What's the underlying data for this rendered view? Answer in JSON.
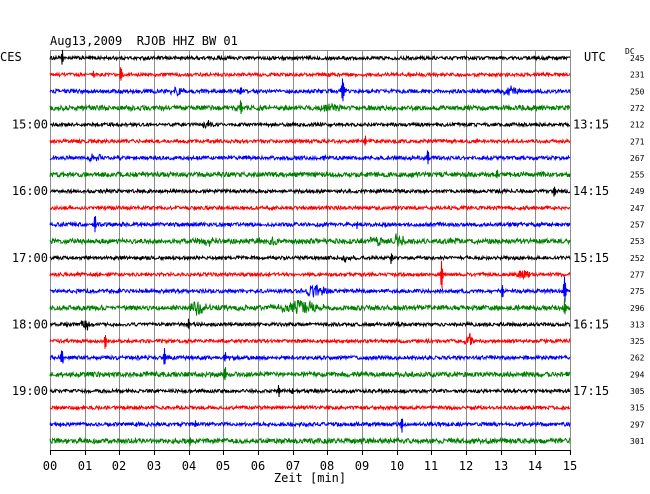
{
  "chart_data": {
    "type": "line",
    "title": "Aug13,2009  RJOB HHZ BW 01",
    "xlabel": "Zeit [min]",
    "xlim": [
      0,
      15
    ],
    "x_tick_labels": [
      "00",
      "01",
      "02",
      "03",
      "04",
      "05",
      "06",
      "07",
      "08",
      "09",
      "10",
      "11",
      "12",
      "13",
      "14",
      "15"
    ],
    "left_axis_label": "CES",
    "right_axis_label": "UTC",
    "dc_header": "DC",
    "grid": "vertical",
    "grid_color": "#8c8c8c",
    "rows": [
      {
        "color": "#000000",
        "dc": "245",
        "noise": 1.0,
        "events": [
          {
            "t": 0.35,
            "amp": 5,
            "dur": 0.03
          }
        ]
      },
      {
        "color": "#ff0000",
        "dc": "231",
        "noise": 1.0,
        "events": [
          {
            "t": 2.05,
            "amp": 6,
            "dur": 0.03
          },
          {
            "t": 1.25,
            "amp": 2,
            "dur": 0.03
          }
        ]
      },
      {
        "color": "#0000ff",
        "dc": "250",
        "noise": 1.1,
        "events": [
          {
            "t": 3.7,
            "amp": 3,
            "dur": 0.18
          },
          {
            "t": 5.5,
            "amp": 3,
            "dur": 0.03
          },
          {
            "t": 8.45,
            "amp": 7,
            "dur": 0.05
          },
          {
            "t": 13.3,
            "amp": 2.5,
            "dur": 0.2
          }
        ]
      },
      {
        "color": "#008000",
        "dc": "272",
        "noise": 1.4,
        "events": [
          {
            "t": 8.1,
            "amp": 3,
            "dur": 0.2
          },
          {
            "t": 5.5,
            "amp": 5,
            "dur": 0.03
          },
          {
            "t": 2.3,
            "amp": 2,
            "dur": 0.03
          }
        ]
      },
      {
        "color": "#000000",
        "dc": "212",
        "noise": 1.0,
        "ces": "15:00",
        "utc": "13:15",
        "events": [
          {
            "t": 4.55,
            "amp": 2,
            "dur": 0.2
          }
        ]
      },
      {
        "color": "#ff0000",
        "dc": "271",
        "noise": 1.0,
        "events": [
          {
            "t": 9.1,
            "amp": 3.5,
            "dur": 0.03
          }
        ]
      },
      {
        "color": "#0000ff",
        "dc": "267",
        "noise": 1.1,
        "events": [
          {
            "t": 1.3,
            "amp": 2,
            "dur": 0.2
          },
          {
            "t": 10.9,
            "amp": 4,
            "dur": 0.03
          },
          {
            "t": 7.9,
            "amp": 2,
            "dur": 0.03
          }
        ]
      },
      {
        "color": "#008000",
        "dc": "255",
        "noise": 1.4,
        "events": [
          {
            "t": 12.9,
            "amp": 2,
            "dur": 0.05
          }
        ]
      },
      {
        "color": "#000000",
        "dc": "249",
        "noise": 1.0,
        "ces": "16:00",
        "utc": "14:15",
        "events": [
          {
            "t": 14.55,
            "amp": 5,
            "dur": 0.03
          }
        ]
      },
      {
        "color": "#ff0000",
        "dc": "247",
        "noise": 1.0,
        "events": []
      },
      {
        "color": "#0000ff",
        "dc": "257",
        "noise": 1.1,
        "events": [
          {
            "t": 1.3,
            "amp": 5,
            "dur": 0.03
          },
          {
            "t": 8.85,
            "amp": 2,
            "dur": 0.03
          }
        ]
      },
      {
        "color": "#008000",
        "dc": "253",
        "noise": 1.4,
        "events": [
          {
            "t": 4.5,
            "amp": 3,
            "dur": 0.25
          },
          {
            "t": 9.4,
            "amp": 2.5,
            "dur": 0.2
          },
          {
            "t": 10.05,
            "amp": 5,
            "dur": 0.15
          },
          {
            "t": 6.3,
            "amp": 1.8,
            "dur": 0.3
          }
        ]
      },
      {
        "color": "#000000",
        "dc": "252",
        "noise": 1.0,
        "ces": "17:00",
        "utc": "15:15",
        "events": [
          {
            "t": 8.5,
            "amp": 2,
            "dur": 0.25
          },
          {
            "t": 9.85,
            "amp": 3.5,
            "dur": 0.03
          }
        ]
      },
      {
        "color": "#ff0000",
        "dc": "277",
        "noise": 1.0,
        "events": [
          {
            "t": 11.3,
            "amp": 9,
            "dur": 0.03
          },
          {
            "t": 13.65,
            "amp": 3,
            "dur": 0.15
          }
        ]
      },
      {
        "color": "#0000ff",
        "dc": "275",
        "noise": 1.1,
        "events": [
          {
            "t": 7.65,
            "amp": 4,
            "dur": 0.25
          },
          {
            "t": 13.05,
            "amp": 5,
            "dur": 0.03
          },
          {
            "t": 14.85,
            "amp": 8,
            "dur": 0.04
          },
          {
            "t": 2.0,
            "amp": 2,
            "dur": 0.03
          }
        ]
      },
      {
        "color": "#008000",
        "dc": "296",
        "noise": 1.4,
        "events": [
          {
            "t": 4.3,
            "amp": 4,
            "dur": 0.25
          },
          {
            "t": 7.2,
            "amp": 4,
            "dur": 0.6
          },
          {
            "t": 14.85,
            "amp": 6,
            "dur": 0.03
          }
        ]
      },
      {
        "color": "#000000",
        "dc": "313",
        "noise": 1.0,
        "ces": "18:00",
        "utc": "16:15",
        "events": [
          {
            "t": 1.05,
            "amp": 4,
            "dur": 0.15
          },
          {
            "t": 4.0,
            "amp": 3,
            "dur": 0.03
          },
          {
            "t": 10.05,
            "amp": 2,
            "dur": 0.03
          }
        ]
      },
      {
        "color": "#ff0000",
        "dc": "325",
        "noise": 1.0,
        "events": [
          {
            "t": 1.6,
            "amp": 6,
            "dur": 0.03
          },
          {
            "t": 12.1,
            "amp": 4,
            "dur": 0.12
          }
        ]
      },
      {
        "color": "#0000ff",
        "dc": "262",
        "noise": 1.1,
        "events": [
          {
            "t": 0.35,
            "amp": 5,
            "dur": 0.04
          },
          {
            "t": 3.3,
            "amp": 6,
            "dur": 0.03
          },
          {
            "t": 5.05,
            "amp": 4,
            "dur": 0.03
          }
        ]
      },
      {
        "color": "#008000",
        "dc": "294",
        "noise": 1.4,
        "events": [
          {
            "t": 5.05,
            "amp": 5,
            "dur": 0.03
          }
        ]
      },
      {
        "color": "#000000",
        "dc": "305",
        "noise": 1.0,
        "ces": "19:00",
        "utc": "17:15",
        "events": [
          {
            "t": 6.6,
            "amp": 4,
            "dur": 0.03
          },
          {
            "t": 7.0,
            "amp": 2,
            "dur": 0.03
          }
        ]
      },
      {
        "color": "#ff0000",
        "dc": "315",
        "noise": 1.0,
        "events": []
      },
      {
        "color": "#0000ff",
        "dc": "297",
        "noise": 1.1,
        "events": [
          {
            "t": 10.15,
            "amp": 6,
            "dur": 0.03
          },
          {
            "t": 4.2,
            "amp": 2,
            "dur": 0.03
          }
        ]
      },
      {
        "color": "#008000",
        "dc": "301",
        "noise": 1.4,
        "events": [
          {
            "t": 4.05,
            "amp": 2.5,
            "dur": 0.03
          }
        ]
      }
    ]
  }
}
